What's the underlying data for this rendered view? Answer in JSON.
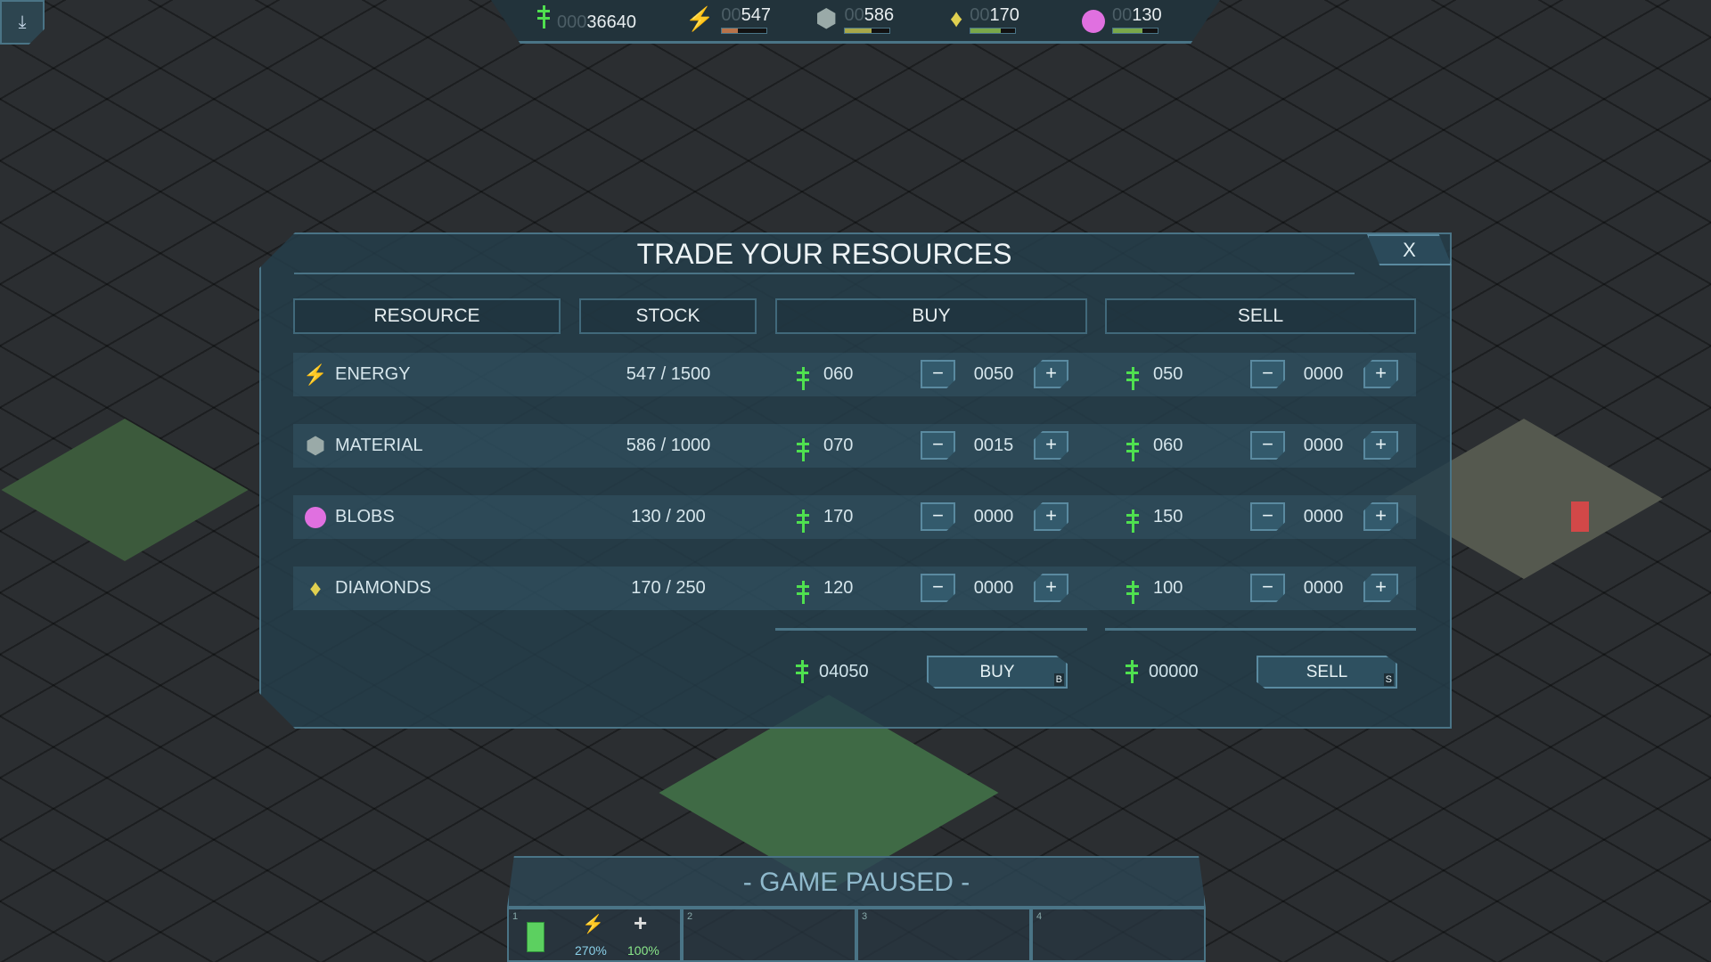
{
  "topbar": {
    "credits": {
      "pad": "000",
      "value": "36640",
      "icon": "credit-icon"
    },
    "energy": {
      "pad": "00",
      "value": "547",
      "fill": 0.36,
      "color": "#b8734a",
      "icon": "lightning-icon"
    },
    "material": {
      "pad": "00",
      "value": "586",
      "fill": 0.59,
      "color": "#a8a84a",
      "icon": "hexagon-icon"
    },
    "diamonds": {
      "pad": "00",
      "value": "170",
      "fill": 0.68,
      "color": "#7aa84a",
      "icon": "diamond-icon"
    },
    "blobs": {
      "pad": "00",
      "value": "130",
      "fill": 0.65,
      "color": "#7aa84a",
      "icon": "blob-icon"
    }
  },
  "dialog": {
    "title": "TRADE YOUR RESOURCES",
    "close_label": "X",
    "headers": {
      "resource": "RESOURCE",
      "stock": "STOCK",
      "buy": "BUY",
      "sell": "SELL"
    },
    "rows": [
      {
        "name": "ENERGY",
        "icon": "lightning-icon",
        "stock": "547 / 1500",
        "buy_price": "060",
        "buy_qty": "0050",
        "sell_price": "050",
        "sell_qty": "0000"
      },
      {
        "name": "MATERIAL",
        "icon": "hexagon-icon",
        "stock": "586 / 1000",
        "buy_price": "070",
        "buy_qty": "0015",
        "sell_price": "060",
        "sell_qty": "0000"
      },
      {
        "name": "BLOBS",
        "icon": "blob-icon",
        "stock": "130 / 200",
        "buy_price": "170",
        "buy_qty": "0000",
        "sell_price": "150",
        "sell_qty": "0000"
      },
      {
        "name": "DIAMONDS",
        "icon": "diamond-icon",
        "stock": "170 / 250",
        "buy_price": "120",
        "buy_qty": "0000",
        "sell_price": "100",
        "sell_qty": "0000"
      }
    ],
    "minus": "−",
    "plus": "+",
    "buy_total": "04050",
    "buy_label": "BUY",
    "buy_hotkey": "B",
    "sell_total": "00000",
    "sell_label": "SELL",
    "sell_hotkey": "S"
  },
  "status": {
    "paused": "- GAME PAUSED -"
  },
  "slots": [
    {
      "number": "1",
      "energy": "270%",
      "health": "100%"
    },
    {
      "number": "2"
    },
    {
      "number": "3"
    },
    {
      "number": "4"
    }
  ]
}
